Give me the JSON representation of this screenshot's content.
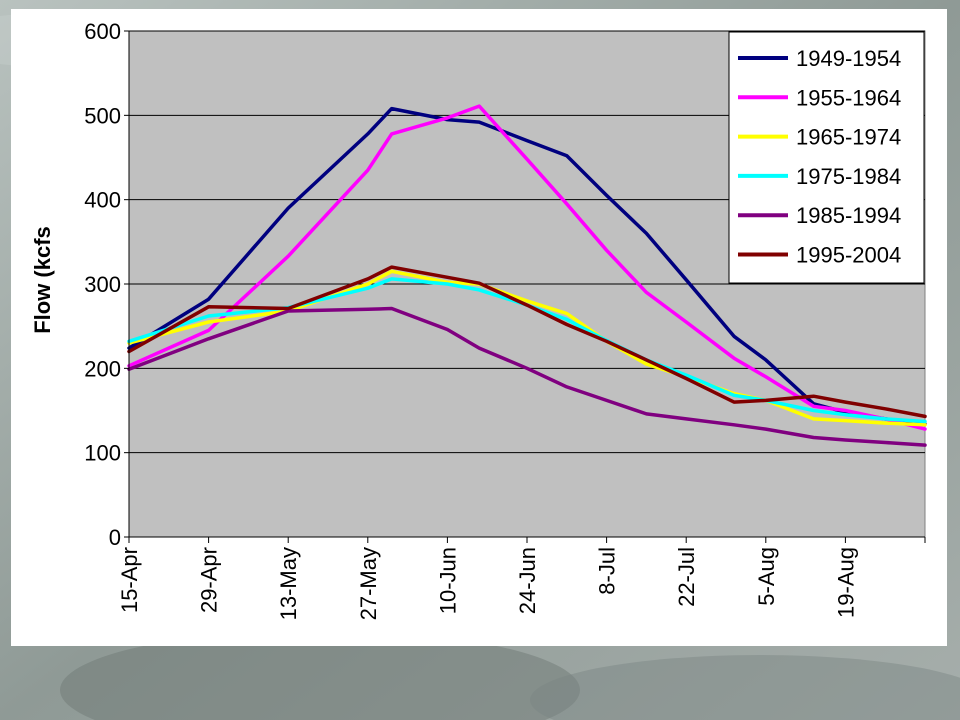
{
  "chart_data": {
    "type": "line",
    "title": "",
    "xlabel": "",
    "ylabel": "Flow (kcfs",
    "ylim": [
      0,
      600
    ],
    "yticks": [
      "0",
      "100",
      "200",
      "300",
      "400",
      "500",
      "600"
    ],
    "categories": [
      "15-Apr",
      "29-Apr",
      "13-May",
      "27-May",
      "10-Jun",
      "24-Jun",
      "8-Jul",
      "22-Jul",
      "5-Aug",
      "19-Aug"
    ],
    "x": [
      0,
      1,
      2,
      3,
      3.5,
      4,
      4.5,
      5,
      5.5,
      6,
      6.5,
      7,
      7.5,
      8,
      8.5,
      9,
      9.5,
      10
    ],
    "grid": true,
    "legend_position": "top-right",
    "series": [
      {
        "name": "1949-1954",
        "color": "#00007f",
        "points": [
          [
            0,
            224
          ],
          [
            1,
            282
          ],
          [
            2,
            390
          ],
          [
            3,
            478
          ],
          [
            3.3,
            508
          ],
          [
            4,
            495
          ],
          [
            4.4,
            492
          ],
          [
            5,
            470
          ],
          [
            5.5,
            452
          ],
          [
            6,
            405
          ],
          [
            6.5,
            360
          ],
          [
            7,
            305
          ],
          [
            7.6,
            238
          ],
          [
            8,
            210
          ],
          [
            8.6,
            158
          ],
          [
            9,
            148
          ],
          [
            9.5,
            140
          ],
          [
            10,
            134
          ]
        ]
      },
      {
        "name": "1955-1964",
        "color": "#ff00ff",
        "points": [
          [
            0,
            203
          ],
          [
            1,
            245
          ],
          [
            2,
            333
          ],
          [
            3,
            435
          ],
          [
            3.3,
            478
          ],
          [
            4,
            497
          ],
          [
            4.4,
            511
          ],
          [
            5,
            448
          ],
          [
            5.5,
            395
          ],
          [
            6,
            340
          ],
          [
            6.5,
            290
          ],
          [
            7,
            255
          ],
          [
            7.6,
            212
          ],
          [
            8,
            190
          ],
          [
            8.6,
            155
          ],
          [
            9,
            150
          ],
          [
            9.5,
            140
          ],
          [
            10,
            128
          ]
        ]
      },
      {
        "name": "1965-1974",
        "color": "#ffff00",
        "points": [
          [
            0,
            230
          ],
          [
            1,
            255
          ],
          [
            2,
            268
          ],
          [
            3,
            300
          ],
          [
            3.3,
            315
          ],
          [
            4,
            302
          ],
          [
            4.4,
            300
          ],
          [
            5,
            280
          ],
          [
            5.5,
            265
          ],
          [
            6,
            232
          ],
          [
            6.5,
            205
          ],
          [
            7,
            190
          ],
          [
            7.6,
            170
          ],
          [
            8,
            162
          ],
          [
            8.6,
            140
          ],
          [
            9,
            138
          ],
          [
            9.5,
            135
          ],
          [
            10,
            133
          ]
        ]
      },
      {
        "name": "1975-1984",
        "color": "#00ffff",
        "points": [
          [
            0,
            232
          ],
          [
            1,
            262
          ],
          [
            2,
            272
          ],
          [
            3,
            295
          ],
          [
            3.3,
            306
          ],
          [
            4,
            300
          ],
          [
            4.4,
            293
          ],
          [
            5,
            275
          ],
          [
            5.5,
            258
          ],
          [
            6,
            233
          ],
          [
            6.5,
            210
          ],
          [
            7,
            192
          ],
          [
            7.6,
            168
          ],
          [
            8,
            162
          ],
          [
            8.6,
            150
          ],
          [
            9,
            145
          ],
          [
            9.5,
            140
          ],
          [
            10,
            137
          ]
        ]
      },
      {
        "name": "1985-1994",
        "color": "#800080",
        "points": [
          [
            0,
            199
          ],
          [
            1,
            235
          ],
          [
            2,
            268
          ],
          [
            3,
            270
          ],
          [
            3.3,
            271
          ],
          [
            4,
            246
          ],
          [
            4.4,
            224
          ],
          [
            5,
            200
          ],
          [
            5.5,
            178
          ],
          [
            6,
            162
          ],
          [
            6.5,
            146
          ],
          [
            7,
            140
          ],
          [
            7.6,
            133
          ],
          [
            8,
            128
          ],
          [
            8.6,
            118
          ],
          [
            9,
            115
          ],
          [
            9.5,
            112
          ],
          [
            10,
            109
          ]
        ]
      },
      {
        "name": "1995-2004",
        "color": "#800000",
        "points": [
          [
            0,
            220
          ],
          [
            1,
            273
          ],
          [
            2,
            271
          ],
          [
            3,
            306
          ],
          [
            3.3,
            320
          ],
          [
            4,
            308
          ],
          [
            4.4,
            301
          ],
          [
            5,
            275
          ],
          [
            5.5,
            252
          ],
          [
            6,
            232
          ],
          [
            6.5,
            210
          ],
          [
            7,
            188
          ],
          [
            7.6,
            160
          ],
          [
            8,
            162
          ],
          [
            8.6,
            167
          ],
          [
            9,
            160
          ],
          [
            9.5,
            152
          ],
          [
            10,
            143
          ]
        ]
      }
    ]
  }
}
